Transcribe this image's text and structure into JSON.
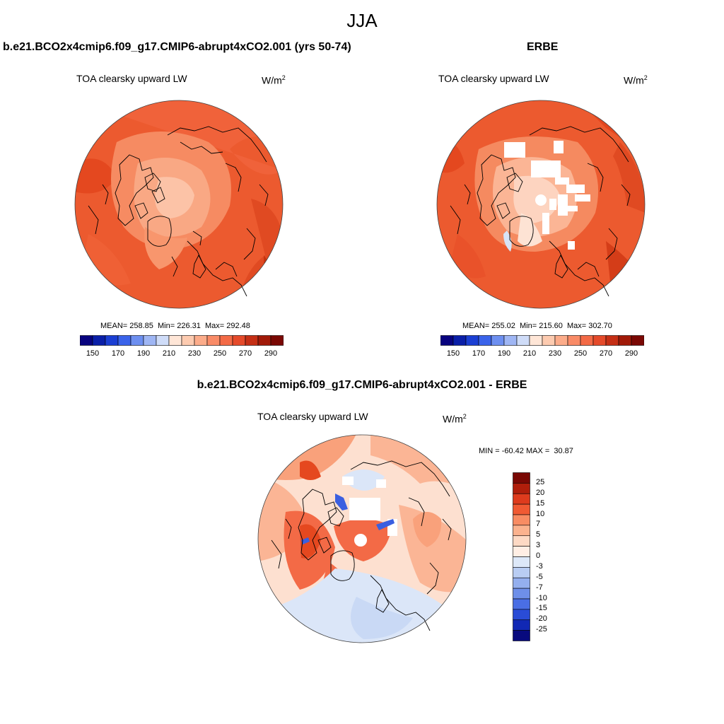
{
  "main_title": "JJA",
  "panels": {
    "model": {
      "title": "b.e21.BCO2x4cmip6.f09_g17.CMIP6-abrupt4xCO2.001 (yrs 50-74)",
      "variable": "TOA clearsky upward LW",
      "units_base": "W/m",
      "units_exp": "2",
      "stats": "MEAN= 258.85  Min= 226.31  Max= 292.48"
    },
    "obs": {
      "title": "ERBE",
      "variable": "TOA clearsky upward LW",
      "units_base": "W/m",
      "units_exp": "2",
      "stats": "MEAN= 255.02  Min= 215.60  Max= 302.70"
    },
    "diff": {
      "title": "b.e21.BCO2x4cmip6.f09_g17.CMIP6-abrupt4xCO2.001 - ERBE",
      "variable": "TOA clearsky upward LW",
      "units_base": "W/m",
      "units_exp": "2",
      "stats": "MIN = -60.42 MAX =  30.87"
    }
  },
  "colorbar_abs": {
    "labels": [
      "150",
      "170",
      "190",
      "210",
      "230",
      "250",
      "270",
      "290"
    ],
    "colors": [
      "#08037f",
      "#0a1fa8",
      "#1b3fd3",
      "#3a63ea",
      "#6d8ff0",
      "#9fb6f4",
      "#cfdcf8",
      "#ffe6d7",
      "#fdcbb0",
      "#fcac8a",
      "#f98b67",
      "#f36a46",
      "#e54a2a",
      "#c52f15",
      "#a11a08",
      "#7a0804"
    ]
  },
  "colorbar_diff": {
    "labels": [
      "25",
      "20",
      "15",
      "10",
      "7",
      "5",
      "3",
      "0",
      "-3",
      "-5",
      "-7",
      "-10",
      "-15",
      "-20",
      "-25"
    ],
    "colors": [
      "#7a0804",
      "#b01e0b",
      "#de3b1d",
      "#f05a33",
      "#f88c63",
      "#fbb28e",
      "#fdd9c4",
      "#ffeee4",
      "#dde8f8",
      "#b9cdf3",
      "#94afee",
      "#6e8fe9",
      "#4a6ee4",
      "#2a4cd6",
      "#1128b4",
      "#080a7e"
    ]
  },
  "palette": {
    "orange_dark": "#e5481f",
    "orange_mid": "#ee5c31",
    "orange_light": "#f7966e",
    "pale": "#fbc5aa",
    "paler": "#fde0d0",
    "lightblue": "#d9e6f8",
    "blue": "#3b5fe0",
    "darkred": "#a11a08"
  }
}
